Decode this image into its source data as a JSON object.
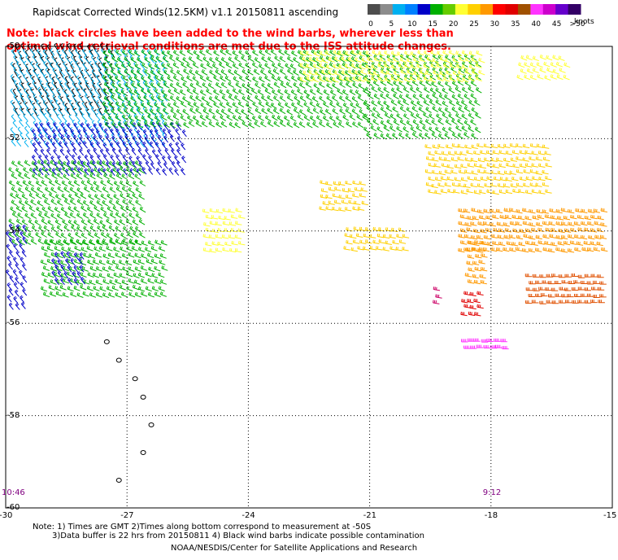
{
  "title": "Rapidscat Corrected Winds(12.5KM) v1.1 20150811 ascending",
  "note": "Note: black circles have been added to the wind barbs, wherever less than optimal wind retrieval conditions are met due to the ISS attitude changes.",
  "colorbar": {
    "ticks": [
      "0",
      "5",
      "10",
      "15",
      "20",
      "25",
      "30",
      "35",
      "40",
      "45",
      ">50"
    ],
    "units": "knots",
    "colors": [
      "#4d4d4d",
      "#8c8c8c",
      "#00b0f0",
      "#0080ff",
      "#0000c8",
      "#00b000",
      "#66cc00",
      "#ffff33",
      "#ffd000",
      "#ff9900",
      "#ff0000",
      "#e00000",
      "#a05000",
      "#ff33ff",
      "#cc00cc",
      "#6600cc",
      "#330066"
    ]
  },
  "map": {
    "lat_labels": [
      "-50",
      "-52",
      "-54",
      "-56",
      "-58",
      "-60"
    ],
    "lon_labels": [
      "-30",
      "-27",
      "-24",
      "-21",
      "-18",
      "-15"
    ],
    "lat_range": [
      -60,
      -50
    ],
    "lon_range": [
      -30,
      -15
    ],
    "time_labels": [
      {
        "text": "10:46",
        "lon": -29.9
      },
      {
        "text": "9:12",
        "lon": -18.0
      }
    ],
    "wind_regions": [
      {
        "color": "#000000",
        "speed_kt": 2,
        "lon": [
          -29.8,
          -27.3
        ],
        "lat": [
          -51.6,
          -50.1
        ],
        "dir": 330
      },
      {
        "color": "#00b0f0",
        "speed_kt": 10,
        "lon": [
          -29.8,
          -26.0
        ],
        "lat": [
          -52.2,
          -50.2
        ],
        "dir": 320
      },
      {
        "color": "#0000c8",
        "speed_kt": 14,
        "lon": [
          -29.3,
          -25.5
        ],
        "lat": [
          -52.8,
          -51.8
        ],
        "dir": 320
      },
      {
        "color": "#00b000",
        "speed_kt": 17,
        "lon": [
          -27.5,
          -21.0
        ],
        "lat": [
          -51.8,
          -50.2
        ],
        "dir": 300
      },
      {
        "color": "#00b000",
        "speed_kt": 17,
        "lon": [
          -29.8,
          -26.5
        ],
        "lat": [
          -54.3,
          -52.6
        ],
        "dir": 300
      },
      {
        "color": "#00b000",
        "speed_kt": 18,
        "lon": [
          -29.0,
          -26.0
        ],
        "lat": [
          -55.5,
          -54.3
        ],
        "dir": 290
      },
      {
        "color": "#00b000",
        "speed_kt": 18,
        "lon": [
          -21.0,
          -18.2
        ],
        "lat": [
          -52.0,
          -50.3
        ],
        "dir": 300
      },
      {
        "color": "#0000c8",
        "speed_kt": 13,
        "lon": [
          -29.9,
          -29.4
        ],
        "lat": [
          -55.8,
          -54.0
        ],
        "dir": 320
      },
      {
        "color": "#0000c8",
        "speed_kt": 13,
        "lon": [
          -28.8,
          -28.0
        ],
        "lat": [
          -55.2,
          -54.6
        ],
        "dir": 320
      },
      {
        "color": "#ffff33",
        "speed_kt": 22,
        "lon": [
          -22.6,
          -18.1
        ],
        "lat": [
          -50.9,
          -50.2
        ],
        "dir": 290
      },
      {
        "color": "#ffff33",
        "speed_kt": 22,
        "lon": [
          -17.2,
          -16.0
        ],
        "lat": [
          -50.8,
          -50.3
        ],
        "dir": 290
      },
      {
        "color": "#ffff33",
        "speed_kt": 22,
        "lon": [
          -25.0,
          -24.0
        ],
        "lat": [
          -54.5,
          -53.6
        ],
        "dir": 280
      },
      {
        "color": "#ffd000",
        "speed_kt": 24,
        "lon": [
          -21.5,
          -20.0
        ],
        "lat": [
          -54.5,
          -54.0
        ],
        "dir": 280
      },
      {
        "color": "#ffd000",
        "speed_kt": 24,
        "lon": [
          -19.5,
          -16.5
        ],
        "lat": [
          -53.3,
          -52.2
        ],
        "dir": 280
      },
      {
        "color": "#ffd000",
        "speed_kt": 24,
        "lon": [
          -22.1,
          -21.0
        ],
        "lat": [
          -53.6,
          -53.0
        ],
        "dir": 280
      },
      {
        "color": "#ff9900",
        "speed_kt": 28,
        "lon": [
          -18.7,
          -15.1
        ],
        "lat": [
          -54.5,
          -53.6
        ],
        "dir": 280
      },
      {
        "color": "#ff9900",
        "speed_kt": 28,
        "lon": [
          -18.5,
          -18.0
        ],
        "lat": [
          -55.2,
          -54.3
        ],
        "dir": 280
      },
      {
        "color": "#e05000",
        "speed_kt": 33,
        "lon": [
          -17.0,
          -15.1
        ],
        "lat": [
          -55.6,
          -55.0
        ],
        "dir": 270
      },
      {
        "color": "#e00000",
        "speed_kt": 32,
        "lon": [
          -18.6,
          -18.1
        ],
        "lat": [
          -55.9,
          -55.4
        ],
        "dir": 280
      },
      {
        "color": "#ff33ff",
        "speed_kt": 42,
        "lon": [
          -18.6,
          -17.5
        ],
        "lat": [
          -56.6,
          -56.4
        ],
        "dir": 270
      },
      {
        "color": "#cc0066",
        "speed_kt": 36,
        "lon": [
          -19.3,
          -19.1
        ],
        "lat": [
          -55.6,
          -55.3
        ],
        "dir": 280
      }
    ],
    "island_outline": [
      {
        "lon": -27.5,
        "lat": -56.4
      },
      {
        "lon": -27.2,
        "lat": -56.8
      },
      {
        "lon": -26.8,
        "lat": -57.2
      },
      {
        "lon": -26.6,
        "lat": -57.6
      },
      {
        "lon": -26.4,
        "lat": -58.2
      },
      {
        "lon": -26.6,
        "lat": -58.8
      },
      {
        "lon": -27.2,
        "lat": -59.4
      }
    ]
  },
  "footnote1": "Note: 1) Times are GMT 2)Times along bottom correspond to measurement at -50S",
  "footnote2": "3)Data buffer is 22 hrs from 20150811 4) Black wind barbs indicate possible contamination",
  "credit": "NOAA/NESDIS/Center for Satellite Applications and Research"
}
